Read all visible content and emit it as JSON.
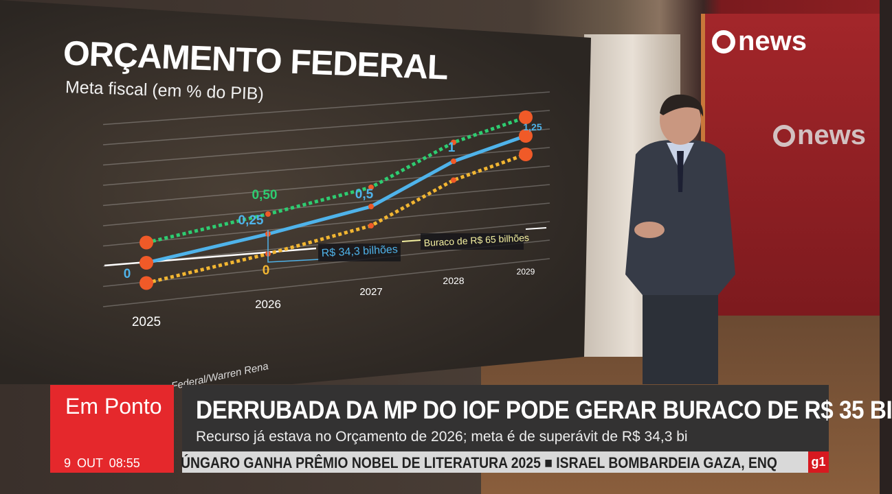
{
  "broadcast": {
    "channel_logo": "news",
    "studio_logo": "news",
    "corner_logo": "g1"
  },
  "chart_data": {
    "type": "line",
    "title": "ORÇAMENTO FEDERAL",
    "subtitle": "Meta fiscal (em % do PIB)",
    "source": "Federal/Warren Rena",
    "categories": [
      "2025",
      "2026",
      "2027",
      "2028",
      "2029"
    ],
    "series": [
      {
        "values": [
          0.25,
          0.5,
          0.75,
          1.25,
          1.5
        ],
        "color": "#2ecc71",
        "style": "dotted"
      },
      {
        "values": [
          0,
          0.25,
          0.5,
          1,
          1.25
        ],
        "color": "#4fb3ea",
        "style": "solid"
      },
      {
        "values": [
          -0.25,
          0,
          0.25,
          0.75,
          1.0
        ],
        "color": "#f2b632",
        "style": "dotted"
      }
    ],
    "data_labels": [
      {
        "text": "0,50",
        "series": 0,
        "index": 1,
        "color": "#2ecc71"
      },
      {
        "text": "0",
        "series": 1,
        "index": 0,
        "color": "#4fb3ea"
      },
      {
        "text": "0,25",
        "series": 1,
        "index": 1,
        "color": "#4fb3ea"
      },
      {
        "text": "0,5",
        "series": 1,
        "index": 2,
        "color": "#4fb3ea"
      },
      {
        "text": "1",
        "series": 1,
        "index": 3,
        "color": "#4fb3ea"
      },
      {
        "text": "1,25",
        "series": 1,
        "index": 4,
        "color": "#4fb3ea"
      },
      {
        "text": "0",
        "series": 2,
        "index": 1,
        "color": "#f2b632"
      }
    ],
    "annotations": [
      {
        "text": "R$ 34,3 bilhões",
        "color": "#4fb3ea"
      },
      {
        "text": "Buraco de R$ 65 bilhões",
        "color": "#f4f0a0"
      }
    ],
    "marker_color": "#f05a28",
    "grid": true
  },
  "lower_third": {
    "program": "Em Ponto",
    "date_time": "9 OUT 08:55",
    "headline": "DERRUBADA DA MP DO IOF PODE GERAR BURACO DE R$ 35 BI",
    "subheadline": "Recurso já estava no Orçamento de 2026; meta é de superávit de R$ 34,3 bi",
    "ticker": "ÚNGARO GANHA PRÊMIO NOBEL DE LITERATURA 2025   ■   ISRAEL BOMBARDEIA GAZA, ENQ"
  }
}
